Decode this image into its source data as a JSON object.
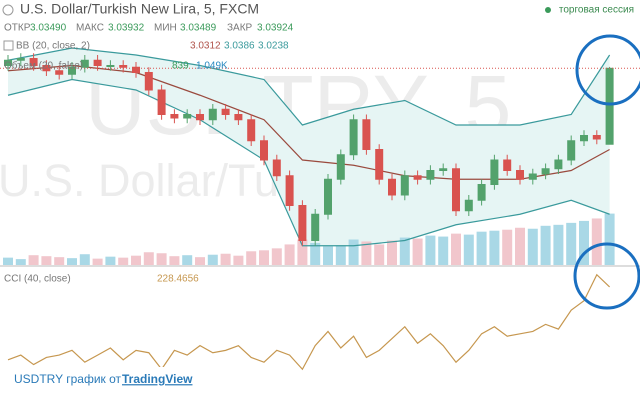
{
  "header": {
    "title": "U.S. Dollar/Turkish New Lira, 5, FXCM",
    "session": "торговая сессия",
    "ohlc": [
      {
        "label": "ОТКР",
        "value": "3.03490"
      },
      {
        "label": "МАКС",
        "value": "3.03932"
      },
      {
        "label": "МИН",
        "value": "3.03489"
      },
      {
        "label": "ЗАКР",
        "value": "3.03924"
      }
    ],
    "bb": {
      "label": "BB (20, close, 2)",
      "values": [
        "3.0312",
        "3.0386",
        "3.0238"
      ]
    },
    "volume": {
      "label": "Объем (20, false)",
      "values": [
        "839",
        "1.049K"
      ]
    },
    "cci": {
      "label": "CCI (40, close)",
      "value": "228.4656"
    }
  },
  "watermark": {
    "symbol": "USDTRY, 5",
    "name": "U.S. Dollar/Turkish New Lira"
  },
  "footer": {
    "text": "USDTRY график от",
    "link": "TradingView"
  },
  "chart_data": [
    {
      "type": "candlestick",
      "ylim": [
        3.028,
        3.042
      ],
      "up_color": "#53a26c",
      "down_color": "#d9534f",
      "open": [
        3.0394,
        3.0397,
        3.0398,
        3.0394,
        3.0391,
        3.0389,
        3.0393,
        3.0397,
        3.0394,
        3.0394,
        3.0393,
        3.039,
        3.038,
        3.0366,
        3.0364,
        3.0366,
        3.0363,
        3.0369,
        3.0366,
        3.0363,
        3.0351,
        3.034,
        3.0331,
        3.0314,
        3.0294,
        3.0309,
        3.0329,
        3.0343,
        3.0363,
        3.0346,
        3.0329,
        3.032,
        3.0331,
        3.0329,
        3.0334,
        3.0335,
        3.0311,
        3.0317,
        3.0326,
        3.034,
        3.0334,
        3.0329,
        3.0332,
        3.0335,
        3.034,
        3.0351,
        3.0354,
        3.0349
      ],
      "high": [
        3.04,
        3.0401,
        3.0401,
        3.0397,
        3.0394,
        3.0396,
        3.04,
        3.04,
        3.0397,
        3.0397,
        3.0396,
        3.0393,
        3.0383,
        3.0369,
        3.0369,
        3.0369,
        3.0372,
        3.0372,
        3.0369,
        3.0366,
        3.0354,
        3.0343,
        3.0334,
        3.0317,
        3.0312,
        3.0332,
        3.0346,
        3.0366,
        3.0366,
        3.0349,
        3.0332,
        3.0334,
        3.0334,
        3.0337,
        3.0338,
        3.0338,
        3.032,
        3.0329,
        3.0343,
        3.0343,
        3.0337,
        3.0335,
        3.0338,
        3.0343,
        3.0354,
        3.0357,
        3.0357,
        3.03932
      ],
      "low": [
        3.0391,
        3.0394,
        3.0391,
        3.0388,
        3.0386,
        3.0386,
        3.039,
        3.0391,
        3.0391,
        3.039,
        3.0387,
        3.0377,
        3.0363,
        3.0361,
        3.0361,
        3.036,
        3.036,
        3.0363,
        3.036,
        3.0348,
        3.0337,
        3.0328,
        3.0311,
        3.0291,
        3.0291,
        3.0306,
        3.0326,
        3.034,
        3.0343,
        3.0326,
        3.0317,
        3.0317,
        3.0326,
        3.0326,
        3.0331,
        3.0308,
        3.0308,
        3.0314,
        3.0323,
        3.0331,
        3.0326,
        3.0326,
        3.0329,
        3.0332,
        3.0337,
        3.0348,
        3.0349,
        3.03489
      ],
      "close": [
        3.0397,
        3.0398,
        3.0394,
        3.0391,
        3.0389,
        3.0393,
        3.0397,
        3.0394,
        3.0394,
        3.0393,
        3.039,
        3.038,
        3.0366,
        3.0364,
        3.0366,
        3.0363,
        3.0369,
        3.0366,
        3.0363,
        3.0351,
        3.034,
        3.0331,
        3.0314,
        3.0294,
        3.0309,
        3.0329,
        3.0343,
        3.0363,
        3.0346,
        3.0329,
        3.032,
        3.0331,
        3.0329,
        3.0334,
        3.0335,
        3.0311,
        3.0317,
        3.0326,
        3.034,
        3.0334,
        3.0329,
        3.0332,
        3.0335,
        3.034,
        3.0351,
        3.0354,
        3.0352,
        3.03924
      ],
      "bb": {
        "x": [
          0,
          5,
          10,
          15,
          20,
          23,
          27,
          31,
          35,
          40,
          44,
          47
        ],
        "band_color": "#3a9a9c",
        "middle_color": "#9a4a3e",
        "fill": "#e6f5f4",
        "upper": [
          3.0397,
          3.0404,
          3.04,
          3.0394,
          3.0386,
          3.036,
          3.0369,
          3.0374,
          3.036,
          3.036,
          3.0366,
          3.04
        ],
        "middle": [
          3.0391,
          3.0394,
          3.039,
          3.0377,
          3.0363,
          3.034,
          3.0337,
          3.0331,
          3.0329,
          3.0329,
          3.0334,
          3.0346
        ],
        "lower": [
          3.0377,
          3.0386,
          3.038,
          3.0363,
          3.034,
          3.0291,
          3.0291,
          3.0294,
          3.0303,
          3.0309,
          3.0317,
          3.0309
        ]
      },
      "volume": {
        "ylim": [
          0,
          5000
        ],
        "up_color": "#a9d8e6",
        "down_color": "#f1c6cc",
        "values": [
          150,
          120,
          200,
          180,
          160,
          140,
          220,
          130,
          170,
          150,
          190,
          260,
          240,
          180,
          200,
          160,
          210,
          230,
          190,
          280,
          300,
          340,
          420,
          520,
          450,
          380,
          400,
          520,
          480,
          420,
          500,
          560,
          540,
          600,
          580,
          640,
          620,
          680,
          700,
          720,
          760,
          740,
          800,
          820,
          860,
          900,
          950,
          1049
        ]
      }
    },
    {
      "type": "line",
      "ylim": [
        -250,
        300
      ],
      "color": "#c6974f",
      "values": [
        -80,
        -60,
        -100,
        -70,
        -60,
        -40,
        -90,
        -60,
        -30,
        -80,
        -40,
        -50,
        -120,
        -40,
        -60,
        -20,
        -50,
        -40,
        -20,
        -70,
        -90,
        -40,
        -60,
        -120,
        -20,
        40,
        -30,
        20,
        -70,
        -40,
        10,
        60,
        -10,
        30,
        -20,
        -90,
        -40,
        30,
        60,
        20,
        30,
        40,
        70,
        50,
        130,
        170,
        280,
        228.4656
      ]
    }
  ]
}
